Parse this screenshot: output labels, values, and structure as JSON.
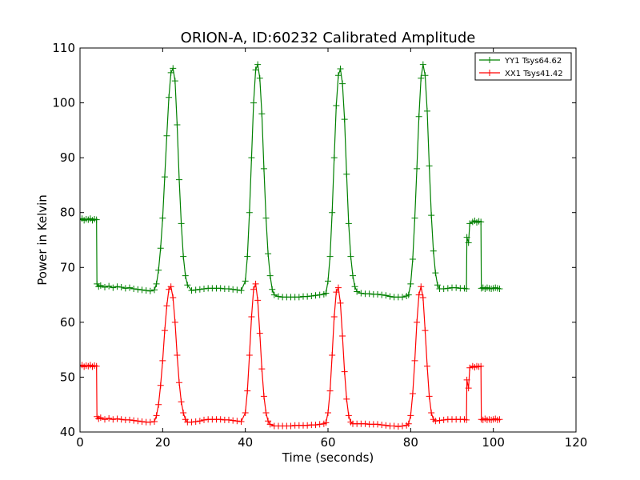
{
  "chart_data": {
    "type": "line",
    "title": "ORION-A, ID:60232 Calibrated Amplitude",
    "xlabel": "Time (seconds)",
    "ylabel": "Power in Kelvin",
    "xlim": [
      0,
      120
    ],
    "ylim": [
      40,
      110
    ],
    "xticks": [
      "0",
      "20",
      "40",
      "60",
      "80",
      "100",
      "120"
    ],
    "yticks": [
      "40",
      "50",
      "60",
      "70",
      "80",
      "90",
      "100",
      "110"
    ],
    "grid": false,
    "legend_position": "top-right",
    "series": [
      {
        "name": "YY1 Tsys64.62",
        "color": "#008000",
        "marker": "+",
        "points": [
          [
            0.0,
            78.7
          ],
          [
            0.5,
            78.9
          ],
          [
            1.0,
            78.6
          ],
          [
            1.5,
            78.8
          ],
          [
            2.0,
            78.7
          ],
          [
            2.5,
            78.9
          ],
          [
            3.0,
            78.6
          ],
          [
            3.5,
            78.8
          ],
          [
            4.0,
            78.7
          ],
          [
            4.1,
            67.0
          ],
          [
            4.5,
            66.5
          ],
          [
            5.0,
            66.7
          ],
          [
            6.0,
            66.4
          ],
          [
            7.0,
            66.6
          ],
          [
            8.0,
            66.3
          ],
          [
            9.0,
            66.5
          ],
          [
            10.0,
            66.4
          ],
          [
            11.0,
            66.2
          ],
          [
            12.0,
            66.3
          ],
          [
            13.0,
            66.1
          ],
          [
            14.0,
            66.0
          ],
          [
            15.0,
            65.9
          ],
          [
            16.0,
            65.8
          ],
          [
            17.0,
            65.7
          ],
          [
            18.0,
            65.9
          ],
          [
            18.5,
            67.0
          ],
          [
            19.0,
            69.5
          ],
          [
            19.5,
            73.5
          ],
          [
            20.0,
            79.0
          ],
          [
            20.5,
            86.5
          ],
          [
            21.0,
            94.0
          ],
          [
            21.5,
            101.0
          ],
          [
            22.0,
            105.5
          ],
          [
            22.5,
            106.3
          ],
          [
            23.0,
            104.0
          ],
          [
            23.5,
            96.0
          ],
          [
            24.0,
            86.0
          ],
          [
            24.5,
            78.0
          ],
          [
            25.0,
            72.0
          ],
          [
            25.5,
            68.5
          ],
          [
            26.0,
            66.8
          ],
          [
            27.0,
            65.8
          ],
          [
            28.0,
            65.9
          ],
          [
            29.0,
            66.0
          ],
          [
            30.0,
            66.1
          ],
          [
            31.0,
            66.2
          ],
          [
            32.0,
            66.2
          ],
          [
            33.0,
            66.2
          ],
          [
            34.0,
            66.2
          ],
          [
            35.0,
            66.1
          ],
          [
            36.0,
            66.1
          ],
          [
            37.0,
            66.0
          ],
          [
            38.0,
            65.9
          ],
          [
            39.0,
            65.8
          ],
          [
            40.0,
            67.5
          ],
          [
            40.5,
            72.0
          ],
          [
            41.0,
            80.0
          ],
          [
            41.5,
            90.0
          ],
          [
            42.0,
            100.0
          ],
          [
            42.5,
            106.0
          ],
          [
            43.0,
            107.0
          ],
          [
            43.5,
            104.5
          ],
          [
            44.0,
            98.0
          ],
          [
            44.5,
            88.0
          ],
          [
            45.0,
            79.0
          ],
          [
            45.5,
            72.5
          ],
          [
            46.0,
            68.5
          ],
          [
            46.5,
            66.0
          ],
          [
            47.0,
            65.0
          ],
          [
            48.0,
            64.7
          ],
          [
            49.0,
            64.6
          ],
          [
            50.0,
            64.6
          ],
          [
            51.0,
            64.6
          ],
          [
            52.0,
            64.6
          ],
          [
            53.0,
            64.6
          ],
          [
            54.0,
            64.7
          ],
          [
            55.0,
            64.7
          ],
          [
            56.0,
            64.8
          ],
          [
            57.0,
            64.9
          ],
          [
            58.0,
            65.0
          ],
          [
            59.0,
            65.1
          ],
          [
            59.5,
            65.3
          ],
          [
            60.0,
            67.5
          ],
          [
            60.5,
            72.0
          ],
          [
            61.0,
            80.0
          ],
          [
            61.5,
            90.0
          ],
          [
            62.0,
            99.5
          ],
          [
            62.5,
            105.0
          ],
          [
            63.0,
            106.2
          ],
          [
            63.5,
            103.5
          ],
          [
            64.0,
            97.0
          ],
          [
            64.5,
            87.0
          ],
          [
            65.0,
            78.0
          ],
          [
            65.5,
            72.0
          ],
          [
            66.0,
            68.5
          ],
          [
            66.5,
            66.5
          ],
          [
            67.0,
            65.6
          ],
          [
            68.0,
            65.3
          ],
          [
            69.0,
            65.2
          ],
          [
            70.0,
            65.2
          ],
          [
            71.0,
            65.1
          ],
          [
            72.0,
            65.1
          ],
          [
            73.0,
            65.0
          ],
          [
            74.0,
            64.9
          ],
          [
            75.0,
            64.7
          ],
          [
            76.0,
            64.6
          ],
          [
            77.0,
            64.6
          ],
          [
            78.0,
            64.6
          ],
          [
            79.0,
            64.8
          ],
          [
            79.5,
            65.0
          ],
          [
            80.0,
            67.0
          ],
          [
            80.5,
            71.5
          ],
          [
            81.0,
            79.0
          ],
          [
            81.5,
            88.0
          ],
          [
            82.0,
            97.5
          ],
          [
            82.5,
            104.5
          ],
          [
            83.0,
            107.0
          ],
          [
            83.5,
            105.0
          ],
          [
            84.0,
            98.5
          ],
          [
            84.5,
            88.5
          ],
          [
            85.0,
            79.5
          ],
          [
            85.5,
            73.0
          ],
          [
            86.0,
            69.0
          ],
          [
            86.5,
            66.8
          ],
          [
            87.0,
            66.1
          ],
          [
            88.0,
            66.1
          ],
          [
            89.0,
            66.2
          ],
          [
            90.0,
            66.3
          ],
          [
            91.0,
            66.3
          ],
          [
            92.0,
            66.2
          ],
          [
            93.0,
            66.2
          ],
          [
            93.5,
            66.1
          ],
          [
            93.6,
            75.5
          ],
          [
            94.0,
            74.5
          ],
          [
            94.3,
            78.0
          ],
          [
            95.0,
            78.3
          ],
          [
            95.5,
            78.5
          ],
          [
            96.0,
            78.2
          ],
          [
            96.5,
            78.4
          ],
          [
            97.0,
            78.3
          ],
          [
            97.1,
            66.2
          ],
          [
            97.5,
            66.3
          ],
          [
            98.0,
            66.1
          ],
          [
            98.5,
            66.3
          ],
          [
            99.0,
            66.2
          ],
          [
            99.5,
            66.1
          ],
          [
            100.0,
            66.2
          ],
          [
            100.5,
            66.3
          ],
          [
            101.0,
            66.2
          ],
          [
            101.5,
            66.1
          ]
        ]
      },
      {
        "name": "XX1 Tsys41.42",
        "color": "#ff0000",
        "marker": "+",
        "points": [
          [
            0.0,
            52.0
          ],
          [
            0.5,
            52.2
          ],
          [
            1.0,
            51.9
          ],
          [
            1.5,
            52.1
          ],
          [
            2.0,
            52.0
          ],
          [
            2.5,
            52.2
          ],
          [
            3.0,
            51.9
          ],
          [
            3.5,
            52.1
          ],
          [
            4.0,
            52.0
          ],
          [
            4.1,
            42.8
          ],
          [
            4.5,
            42.4
          ],
          [
            5.0,
            42.6
          ],
          [
            6.0,
            42.3
          ],
          [
            7.0,
            42.5
          ],
          [
            8.0,
            42.3
          ],
          [
            9.0,
            42.4
          ],
          [
            10.0,
            42.3
          ],
          [
            11.0,
            42.2
          ],
          [
            12.0,
            42.2
          ],
          [
            13.0,
            42.1
          ],
          [
            14.0,
            42.0
          ],
          [
            15.0,
            41.9
          ],
          [
            16.0,
            41.8
          ],
          [
            17.0,
            41.8
          ],
          [
            18.0,
            41.9
          ],
          [
            18.5,
            43.0
          ],
          [
            19.0,
            45.0
          ],
          [
            19.5,
            48.5
          ],
          [
            20.0,
            53.0
          ],
          [
            20.5,
            58.5
          ],
          [
            21.0,
            63.0
          ],
          [
            21.5,
            66.0
          ],
          [
            22.0,
            66.5
          ],
          [
            22.5,
            64.5
          ],
          [
            23.0,
            60.0
          ],
          [
            23.5,
            54.0
          ],
          [
            24.0,
            49.0
          ],
          [
            24.5,
            45.5
          ],
          [
            25.0,
            43.5
          ],
          [
            25.5,
            42.3
          ],
          [
            26.0,
            41.8
          ],
          [
            27.0,
            41.8
          ],
          [
            28.0,
            41.9
          ],
          [
            29.0,
            42.0
          ],
          [
            30.0,
            42.2
          ],
          [
            31.0,
            42.3
          ],
          [
            32.0,
            42.3
          ],
          [
            33.0,
            42.3
          ],
          [
            34.0,
            42.3
          ],
          [
            35.0,
            42.2
          ],
          [
            36.0,
            42.2
          ],
          [
            37.0,
            42.1
          ],
          [
            38.0,
            42.0
          ],
          [
            39.0,
            41.9
          ],
          [
            40.0,
            43.5
          ],
          [
            40.5,
            47.5
          ],
          [
            41.0,
            54.0
          ],
          [
            41.5,
            61.0
          ],
          [
            42.0,
            66.0
          ],
          [
            42.5,
            67.0
          ],
          [
            43.0,
            64.0
          ],
          [
            43.5,
            58.0
          ],
          [
            44.0,
            51.5
          ],
          [
            44.5,
            46.5
          ],
          [
            45.0,
            43.5
          ],
          [
            45.5,
            42.0
          ],
          [
            46.0,
            41.4
          ],
          [
            47.0,
            41.1
          ],
          [
            48.0,
            41.1
          ],
          [
            49.0,
            41.1
          ],
          [
            50.0,
            41.1
          ],
          [
            51.0,
            41.1
          ],
          [
            52.0,
            41.2
          ],
          [
            53.0,
            41.2
          ],
          [
            54.0,
            41.2
          ],
          [
            55.0,
            41.2
          ],
          [
            56.0,
            41.3
          ],
          [
            57.0,
            41.3
          ],
          [
            58.0,
            41.4
          ],
          [
            59.0,
            41.5
          ],
          [
            59.5,
            41.7
          ],
          [
            60.0,
            43.5
          ],
          [
            60.5,
            47.5
          ],
          [
            61.0,
            54.0
          ],
          [
            61.5,
            61.0
          ],
          [
            62.0,
            65.5
          ],
          [
            62.5,
            66.3
          ],
          [
            63.0,
            63.5
          ],
          [
            63.5,
            57.5
          ],
          [
            64.0,
            51.0
          ],
          [
            64.5,
            46.0
          ],
          [
            65.0,
            43.0
          ],
          [
            65.5,
            41.8
          ],
          [
            66.0,
            41.5
          ],
          [
            67.0,
            41.5
          ],
          [
            68.0,
            41.5
          ],
          [
            69.0,
            41.5
          ],
          [
            70.0,
            41.4
          ],
          [
            71.0,
            41.4
          ],
          [
            72.0,
            41.4
          ],
          [
            73.0,
            41.3
          ],
          [
            74.0,
            41.2
          ],
          [
            75.0,
            41.1
          ],
          [
            76.0,
            41.1
          ],
          [
            77.0,
            41.0
          ],
          [
            78.0,
            41.1
          ],
          [
            79.0,
            41.2
          ],
          [
            79.5,
            41.5
          ],
          [
            80.0,
            43.0
          ],
          [
            80.5,
            47.0
          ],
          [
            81.0,
            53.0
          ],
          [
            81.5,
            60.0
          ],
          [
            82.0,
            65.0
          ],
          [
            82.5,
            66.5
          ],
          [
            83.0,
            64.5
          ],
          [
            83.5,
            58.5
          ],
          [
            84.0,
            52.0
          ],
          [
            84.5,
            46.5
          ],
          [
            85.0,
            43.5
          ],
          [
            85.5,
            42.3
          ],
          [
            86.0,
            42.0
          ],
          [
            87.0,
            42.1
          ],
          [
            88.0,
            42.2
          ],
          [
            89.0,
            42.3
          ],
          [
            90.0,
            42.3
          ],
          [
            91.0,
            42.3
          ],
          [
            92.0,
            42.3
          ],
          [
            93.0,
            42.3
          ],
          [
            93.5,
            42.2
          ],
          [
            93.6,
            49.5
          ],
          [
            94.0,
            48.0
          ],
          [
            94.3,
            51.7
          ],
          [
            95.0,
            52.0
          ],
          [
            95.5,
            51.8
          ],
          [
            96.0,
            52.0
          ],
          [
            96.5,
            51.9
          ],
          [
            97.0,
            52.0
          ],
          [
            97.1,
            42.3
          ],
          [
            97.5,
            42.2
          ],
          [
            98.0,
            42.4
          ],
          [
            98.5,
            42.2
          ],
          [
            99.0,
            42.3
          ],
          [
            99.5,
            42.2
          ],
          [
            100.0,
            42.3
          ],
          [
            100.5,
            42.4
          ],
          [
            101.0,
            42.2
          ],
          [
            101.5,
            42.3
          ]
        ]
      }
    ]
  }
}
